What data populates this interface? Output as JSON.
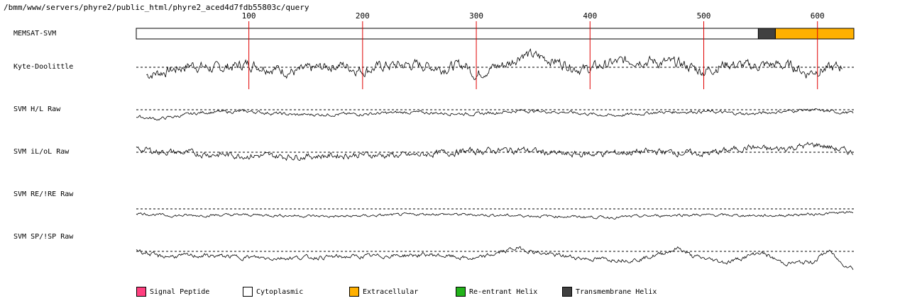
{
  "title": "/bmm/www/servers/phyre2/public_html/phyre2_aced4d7fdb55803c/query",
  "chart_data": {
    "type": "line",
    "xlim": [
      1,
      632
    ],
    "x_ticks": [
      100,
      200,
      300,
      400,
      500,
      600
    ],
    "x_tick_labels": [
      "100",
      "200",
      "300",
      "400",
      "500",
      "600"
    ],
    "topology": {
      "name": "MEMSAT-SVM",
      "segments": [
        {
          "start": 1,
          "end": 548,
          "type": "Cytoplasmic",
          "color": "#ffffff"
        },
        {
          "start": 548,
          "end": 563,
          "type": "Transmembrane Helix",
          "color": "#404040"
        },
        {
          "start": 563,
          "end": 632,
          "type": "Extracellular",
          "color": "#ffb000"
        }
      ]
    },
    "series": [
      {
        "name": "Kyte-Doolittle",
        "x_start": 10,
        "x_end": 622,
        "noise": 1.0,
        "profile": [
          [
            10,
            -0.9
          ],
          [
            30,
            -0.4
          ],
          [
            50,
            0.3
          ],
          [
            70,
            -0.2
          ],
          [
            100,
            0.4
          ],
          [
            120,
            -0.1
          ],
          [
            140,
            -0.6
          ],
          [
            160,
            -0.1
          ],
          [
            180,
            0.3
          ],
          [
            200,
            -0.4
          ],
          [
            220,
            0.2
          ],
          [
            250,
            0.3
          ],
          [
            270,
            -0.1
          ],
          [
            290,
            0.3
          ],
          [
            300,
            -0.9
          ],
          [
            310,
            -0.2
          ],
          [
            330,
            0.5
          ],
          [
            340,
            1.6
          ],
          [
            360,
            1.1
          ],
          [
            380,
            0.3
          ],
          [
            395,
            -0.3
          ],
          [
            420,
            0.5
          ],
          [
            440,
            0.9
          ],
          [
            460,
            0.6
          ],
          [
            480,
            0.4
          ],
          [
            500,
            -0.5
          ],
          [
            520,
            0.4
          ],
          [
            540,
            0.1
          ],
          [
            560,
            0.3
          ],
          [
            580,
            0.1
          ],
          [
            590,
            -0.7
          ],
          [
            600,
            -0.3
          ],
          [
            610,
            -0.2
          ],
          [
            622,
            0.1
          ]
        ]
      },
      {
        "name": "SVM H/L Raw",
        "x_start": 1,
        "x_end": 632,
        "noise": 0.3,
        "profile": [
          [
            1,
            -0.8
          ],
          [
            20,
            -1.1
          ],
          [
            60,
            -0.3
          ],
          [
            100,
            -0.2
          ],
          [
            140,
            -0.6
          ],
          [
            200,
            -0.5
          ],
          [
            240,
            -0.3
          ],
          [
            300,
            -0.5
          ],
          [
            340,
            -0.1
          ],
          [
            380,
            -0.3
          ],
          [
            420,
            -0.7
          ],
          [
            460,
            -0.3
          ],
          [
            500,
            -0.2
          ],
          [
            540,
            -0.5
          ],
          [
            560,
            -0.3
          ],
          [
            590,
            0.0
          ],
          [
            610,
            -0.2
          ],
          [
            632,
            -0.4
          ]
        ]
      },
      {
        "name": "SVM iL/oL Raw",
        "x_start": 1,
        "x_end": 632,
        "noise": 0.6,
        "profile": [
          [
            1,
            0.4
          ],
          [
            20,
            0.1
          ],
          [
            60,
            -0.2
          ],
          [
            100,
            -0.4
          ],
          [
            140,
            -0.5
          ],
          [
            200,
            -0.3
          ],
          [
            240,
            -0.4
          ],
          [
            290,
            0.1
          ],
          [
            340,
            0.3
          ],
          [
            380,
            -0.3
          ],
          [
            420,
            -0.1
          ],
          [
            460,
            0.1
          ],
          [
            500,
            -0.2
          ],
          [
            540,
            0.6
          ],
          [
            560,
            0.3
          ],
          [
            600,
            0.9
          ],
          [
            620,
            0.3
          ],
          [
            632,
            -0.1
          ]
        ]
      },
      {
        "name": "SVM RE/!RE Raw",
        "x_start": 1,
        "x_end": 632,
        "noise": 0.25,
        "profile": [
          [
            1,
            -0.5
          ],
          [
            30,
            -0.8
          ],
          [
            100,
            -0.7
          ],
          [
            180,
            -0.9
          ],
          [
            260,
            -0.6
          ],
          [
            340,
            -0.8
          ],
          [
            420,
            -1.0
          ],
          [
            480,
            -0.7
          ],
          [
            560,
            -0.8
          ],
          [
            600,
            -0.6
          ],
          [
            632,
            -0.4
          ]
        ]
      },
      {
        "name": "SVM SP/!SP Raw",
        "x_start": 1,
        "x_end": 632,
        "noise": 0.4,
        "profile": [
          [
            1,
            0.2
          ],
          [
            20,
            -0.6
          ],
          [
            60,
            -0.5
          ],
          [
            120,
            -0.8
          ],
          [
            200,
            -0.6
          ],
          [
            260,
            -0.4
          ],
          [
            300,
            -0.9
          ],
          [
            335,
            0.4
          ],
          [
            360,
            -0.3
          ],
          [
            400,
            -0.9
          ],
          [
            440,
            -1.0
          ],
          [
            460,
            -0.4
          ],
          [
            478,
            0.4
          ],
          [
            490,
            -0.6
          ],
          [
            520,
            -1.3
          ],
          [
            550,
            -0.1
          ],
          [
            570,
            -1.4
          ],
          [
            595,
            -1.3
          ],
          [
            610,
            0.1
          ],
          [
            620,
            -1.3
          ],
          [
            632,
            -2.0
          ]
        ]
      }
    ]
  },
  "legend": [
    {
      "label": "Signal Peptide",
      "color": "#ff3f7f"
    },
    {
      "label": "Cytoplasmic",
      "color": "#ffffff"
    },
    {
      "label": "Extracellular",
      "color": "#ffb000"
    },
    {
      "label": "Re-entrant Helix",
      "color": "#22b31a"
    },
    {
      "label": "Transmembrane Helix",
      "color": "#404040"
    }
  ]
}
